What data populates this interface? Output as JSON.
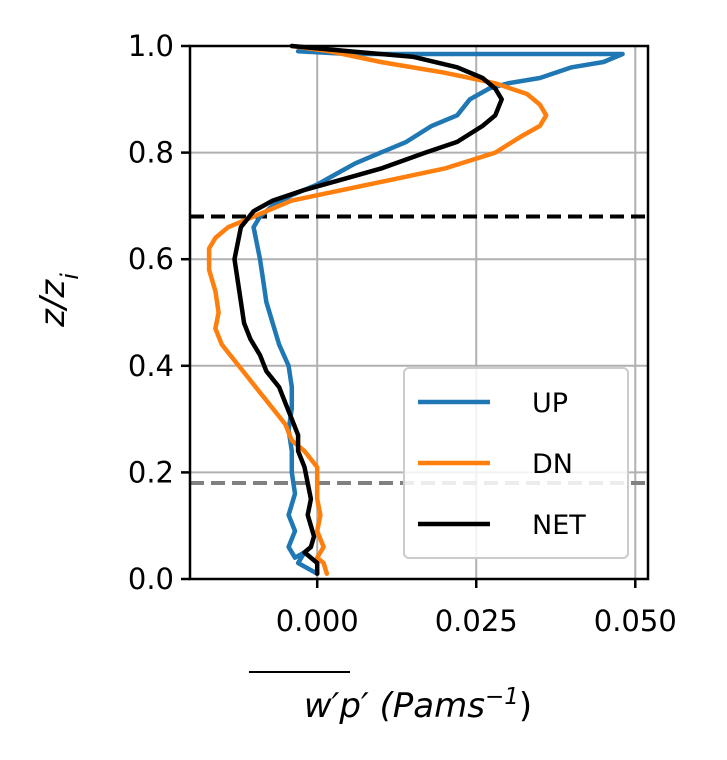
{
  "chart_data": {
    "type": "line",
    "xlabel": {
      "overline": "w′p′",
      "rest": " (Pams",
      "sup": "−1",
      "close": ")"
    },
    "ylabel": {
      "main": "z/z",
      "sub": "i"
    },
    "xlim": [
      -0.02,
      0.052
    ],
    "ylim": [
      0.0,
      1.0
    ],
    "x_ticks": [
      0.0,
      0.025,
      0.05
    ],
    "x_tick_labels": [
      "0.000",
      "0.025",
      "0.050"
    ],
    "y_ticks": [
      0.0,
      0.2,
      0.4,
      0.6,
      0.8,
      1.0
    ],
    "y_tick_labels": [
      "0.0",
      "0.2",
      "0.4",
      "0.6",
      "0.8",
      "1.0"
    ],
    "grid": true,
    "legend": {
      "placement": "lower-right"
    },
    "hlines": [
      {
        "y": 0.68,
        "color": "#000000",
        "style": "dashed"
      },
      {
        "y": 0.18,
        "color": "#808080",
        "style": "dashed"
      }
    ],
    "series": [
      {
        "name": "UP",
        "color": "#1f77b4",
        "points": [
          [
            -0.003,
            0.99
          ],
          [
            0.005,
            0.985
          ],
          [
            0.048,
            0.985
          ],
          [
            0.045,
            0.97
          ],
          [
            0.04,
            0.96
          ],
          [
            0.035,
            0.94
          ],
          [
            0.03,
            0.93
          ],
          [
            0.027,
            0.92
          ],
          [
            0.024,
            0.9
          ],
          [
            0.022,
            0.87
          ],
          [
            0.018,
            0.85
          ],
          [
            0.014,
            0.82
          ],
          [
            0.01,
            0.8
          ],
          [
            0.006,
            0.78
          ],
          [
            0.003,
            0.76
          ],
          [
            0.0,
            0.74
          ],
          [
            -0.004,
            0.72
          ],
          [
            -0.007,
            0.7
          ],
          [
            -0.009,
            0.68
          ],
          [
            -0.01,
            0.66
          ],
          [
            -0.0095,
            0.63
          ],
          [
            -0.009,
            0.6
          ],
          [
            -0.0085,
            0.56
          ],
          [
            -0.008,
            0.52
          ],
          [
            -0.007,
            0.48
          ],
          [
            -0.006,
            0.44
          ],
          [
            -0.0045,
            0.4
          ],
          [
            -0.004,
            0.36
          ],
          [
            -0.004,
            0.32
          ],
          [
            -0.0045,
            0.28
          ],
          [
            -0.004,
            0.24
          ],
          [
            -0.004,
            0.2
          ],
          [
            -0.0035,
            0.16
          ],
          [
            -0.0045,
            0.12
          ],
          [
            -0.0035,
            0.09
          ],
          [
            -0.0045,
            0.06
          ],
          [
            -0.0035,
            0.04
          ],
          [
            -0.002,
            0.05
          ],
          [
            -0.003,
            0.03
          ],
          [
            0.0,
            0.01
          ]
        ]
      },
      {
        "name": "DN",
        "color": "#ff7f0e",
        "points": [
          [
            -0.004,
            1.0
          ],
          [
            0.002,
            0.99
          ],
          [
            0.01,
            0.97
          ],
          [
            0.02,
            0.95
          ],
          [
            0.028,
            0.93
          ],
          [
            0.033,
            0.91
          ],
          [
            0.035,
            0.89
          ],
          [
            0.036,
            0.87
          ],
          [
            0.035,
            0.85
          ],
          [
            0.032,
            0.83
          ],
          [
            0.028,
            0.8
          ],
          [
            0.02,
            0.77
          ],
          [
            0.012,
            0.75
          ],
          [
            0.004,
            0.73
          ],
          [
            -0.004,
            0.71
          ],
          [
            -0.01,
            0.68
          ],
          [
            -0.014,
            0.66
          ],
          [
            -0.016,
            0.64
          ],
          [
            -0.017,
            0.62
          ],
          [
            -0.017,
            0.58
          ],
          [
            -0.016,
            0.54
          ],
          [
            -0.0155,
            0.5
          ],
          [
            -0.016,
            0.47
          ],
          [
            -0.015,
            0.44
          ],
          [
            -0.013,
            0.41
          ],
          [
            -0.011,
            0.38
          ],
          [
            -0.009,
            0.35
          ],
          [
            -0.007,
            0.32
          ],
          [
            -0.005,
            0.29
          ],
          [
            -0.004,
            0.26
          ],
          [
            -0.002,
            0.24
          ],
          [
            0.0,
            0.21
          ],
          [
            0.0,
            0.18
          ],
          [
            0.0,
            0.15
          ],
          [
            0.0005,
            0.12
          ],
          [
            0.0,
            0.09
          ],
          [
            0.001,
            0.06
          ],
          [
            0.0,
            0.04
          ],
          [
            0.001,
            0.03
          ],
          [
            0.0015,
            0.01
          ]
        ]
      },
      {
        "name": "NET",
        "color": "#000000",
        "points": [
          [
            -0.004,
            1.0
          ],
          [
            0.005,
            0.99
          ],
          [
            0.015,
            0.98
          ],
          [
            0.022,
            0.96
          ],
          [
            0.026,
            0.94
          ],
          [
            0.028,
            0.92
          ],
          [
            0.029,
            0.9
          ],
          [
            0.028,
            0.87
          ],
          [
            0.026,
            0.85
          ],
          [
            0.022,
            0.82
          ],
          [
            0.017,
            0.8
          ],
          [
            0.01,
            0.77
          ],
          [
            0.004,
            0.75
          ],
          [
            -0.002,
            0.73
          ],
          [
            -0.007,
            0.71
          ],
          [
            -0.01,
            0.69
          ],
          [
            -0.012,
            0.66
          ],
          [
            -0.0125,
            0.63
          ],
          [
            -0.013,
            0.6
          ],
          [
            -0.0125,
            0.56
          ],
          [
            -0.012,
            0.52
          ],
          [
            -0.0115,
            0.48
          ],
          [
            -0.0105,
            0.45
          ],
          [
            -0.009,
            0.42
          ],
          [
            -0.008,
            0.39
          ],
          [
            -0.006,
            0.36
          ],
          [
            -0.005,
            0.33
          ],
          [
            -0.004,
            0.3
          ],
          [
            -0.003,
            0.27
          ],
          [
            -0.003,
            0.24
          ],
          [
            -0.002,
            0.21
          ],
          [
            -0.0015,
            0.18
          ],
          [
            -0.001,
            0.15
          ],
          [
            -0.0015,
            0.12
          ],
          [
            -0.001,
            0.1
          ],
          [
            -0.0005,
            0.08
          ],
          [
            -0.001,
            0.06
          ],
          [
            -0.002,
            0.05
          ],
          [
            0.0,
            0.03
          ],
          [
            0.0,
            0.01
          ]
        ]
      }
    ]
  }
}
